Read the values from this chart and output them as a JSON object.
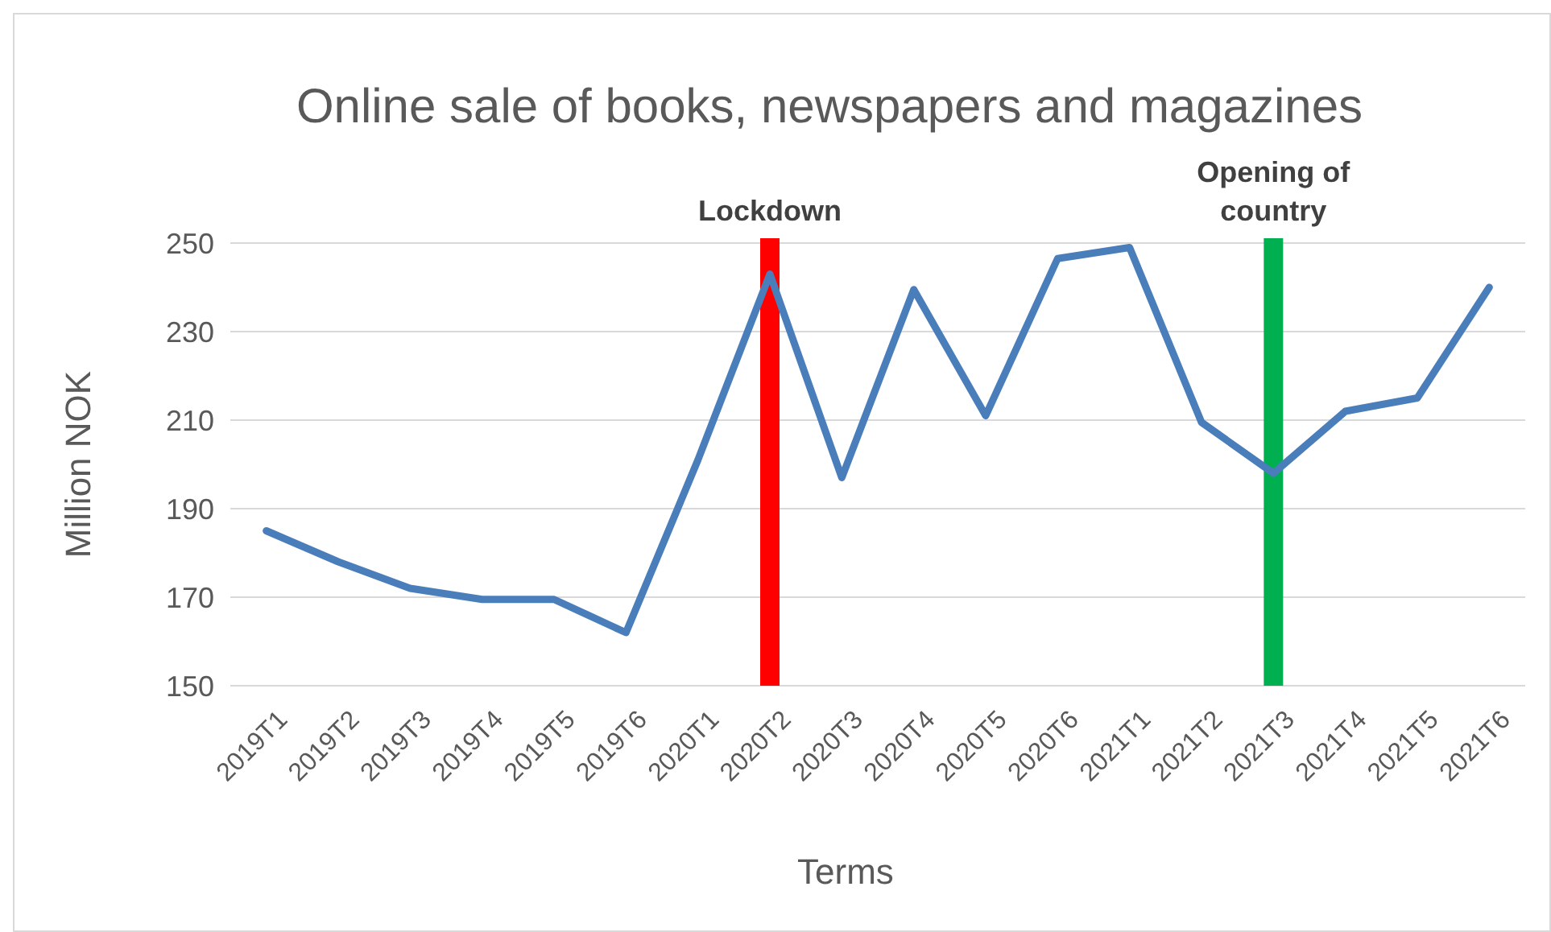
{
  "chart_data": {
    "type": "line",
    "title": "Online sale of books, newspapers and magazines",
    "xlabel": "Terms",
    "ylabel": "Million NOK",
    "categories": [
      "2019T1",
      "2019T2",
      "2019T3",
      "2019T4",
      "2019T5",
      "2019T6",
      "2020T1",
      "2020T2",
      "2020T3",
      "2020T4",
      "2020T5",
      "2020T6",
      "2021T1",
      "2021T2",
      "2021T3",
      "2021T4",
      "2021T5",
      "2021T6"
    ],
    "series": [
      {
        "color": "#4a7ebb",
        "values": [
          185,
          178,
          172,
          169.5,
          169.5,
          162,
          201,
          243,
          197,
          239.5,
          211,
          246.5,
          249,
          209.5,
          198,
          212,
          215,
          240
        ]
      }
    ],
    "ylim": [
      150,
      250
    ],
    "yticks": [
      150,
      170,
      190,
      210,
      230,
      250
    ],
    "grid": "y",
    "marker": "none",
    "line_style": "solid",
    "ref_lines": [
      {
        "axis": "x",
        "value": "2020T2",
        "label": "Lockdown",
        "color": "#ff0000"
      },
      {
        "axis": "x",
        "value": "2021T3",
        "label": "Opening of country",
        "color": "#00b050"
      }
    ]
  }
}
